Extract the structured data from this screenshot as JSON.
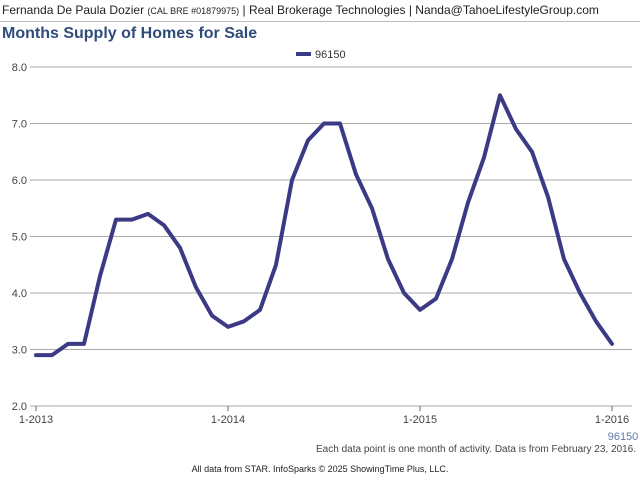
{
  "header": {
    "name": "Fernanda De Paula Dozier",
    "license": "(CAL BRE #01879975)",
    "rest": "| Real Brokerage Technologies | Nanda@TahoeLifestyleGroup.com"
  },
  "footer": {
    "note": "Each data point is one month of activity. Data is from February 23, 2016.",
    "copyright": "All data from STAR. InfoSparks © 2025 ShowingTime Plus, LLC."
  },
  "colors": {
    "series": "#3d3a85",
    "title": "#2f4d7a",
    "grid": "#aaaaaa",
    "end_label": "#5a7ca6"
  },
  "chart_data": {
    "type": "line",
    "title": "Months Supply of Homes for Sale",
    "legend": {
      "placement": "top-center"
    },
    "grid": true,
    "xlabel": "",
    "ylabel": "",
    "ylim": [
      2.0,
      8.0
    ],
    "yticks": [
      "2.0",
      "3.0",
      "4.0",
      "5.0",
      "6.0",
      "7.0",
      "8.0"
    ],
    "xticks": [
      "1-2013",
      "1-2014",
      "1-2015",
      "1-2016"
    ],
    "x": [
      "2013-01",
      "2013-02",
      "2013-03",
      "2013-04",
      "2013-05",
      "2013-06",
      "2013-07",
      "2013-08",
      "2013-09",
      "2013-10",
      "2013-11",
      "2013-12",
      "2014-01",
      "2014-02",
      "2014-03",
      "2014-04",
      "2014-05",
      "2014-06",
      "2014-07",
      "2014-08",
      "2014-09",
      "2014-10",
      "2014-11",
      "2014-12",
      "2015-01",
      "2015-02",
      "2015-03",
      "2015-04",
      "2015-05",
      "2015-06",
      "2015-07",
      "2015-08",
      "2015-09",
      "2015-10",
      "2015-11",
      "2015-12",
      "2016-01"
    ],
    "series": [
      {
        "name": "96150",
        "values": [
          2.9,
          2.9,
          3.1,
          3.1,
          4.3,
          5.3,
          5.3,
          5.4,
          5.2,
          4.8,
          4.1,
          3.6,
          3.4,
          3.5,
          3.7,
          4.5,
          6.0,
          6.7,
          7.0,
          7.0,
          6.1,
          5.5,
          4.6,
          4.0,
          3.7,
          3.9,
          4.6,
          5.6,
          6.4,
          7.5,
          6.9,
          6.5,
          5.7,
          4.6,
          4.0,
          3.5,
          3.1
        ],
        "end_label": "96150"
      }
    ]
  }
}
